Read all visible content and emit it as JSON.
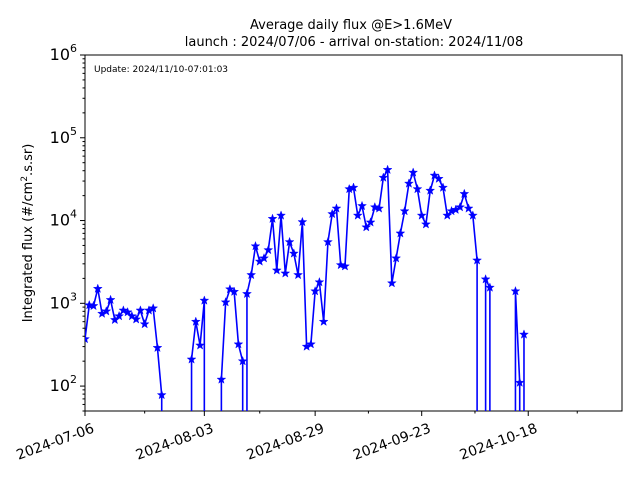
{
  "chart_data": {
    "type": "line",
    "title": "Average daily flux @E>1.6MeV",
    "subtitle": "launch : 2024/07/06 - arrival on-station: 2024/11/08",
    "annotation": "Update: 2024/11/10-07:01:03",
    "ylabel": "Integrated flux (#/cm",
    "ylabel_sup": "2",
    "ylabel_tail": ".s.sr)",
    "yscale": "log",
    "ylim": [
      50,
      1000000
    ],
    "xlim": [
      "2024-07-06",
      "2024-11-09"
    ],
    "x_ticks": [
      "2024-07-06",
      "2024-08-03",
      "2024-08-29",
      "2024-09-23",
      "2024-10-18"
    ],
    "y_ticks": [
      {
        "value": 100,
        "base": "10",
        "exp": "2"
      },
      {
        "value": 1000,
        "base": "10",
        "exp": "3"
      },
      {
        "value": 10000,
        "base": "10",
        "exp": "4"
      },
      {
        "value": 100000,
        "base": "10",
        "exp": "5"
      },
      {
        "value": 1000000,
        "base": "10",
        "exp": "6"
      }
    ],
    "grid": false,
    "marker": "star",
    "color": "#0000ff",
    "series": [
      {
        "segments": [
          [
            [
              "2024-07-06",
              370
            ],
            [
              "2024-07-07",
              950
            ],
            [
              "2024-07-08",
              930
            ],
            [
              "2024-07-09",
              1500
            ],
            [
              "2024-07-10",
              750
            ],
            [
              "2024-07-11",
              800
            ],
            [
              "2024-07-12",
              1100
            ],
            [
              "2024-07-13",
              630
            ],
            [
              "2024-07-14",
              700
            ],
            [
              "2024-07-15",
              820
            ],
            [
              "2024-07-16",
              780
            ],
            [
              "2024-07-17",
              700
            ],
            [
              "2024-07-18",
              640
            ],
            [
              "2024-07-19",
              820
            ],
            [
              "2024-07-20",
              560
            ],
            [
              "2024-07-21",
              820
            ],
            [
              "2024-07-22",
              870
            ],
            [
              "2024-07-23",
              290
            ],
            [
              "2024-07-24",
              78
            ],
            [
              "2024-07-24",
              30
            ]
          ],
          [
            [
              "2024-07-31",
              30
            ],
            [
              "2024-07-31",
              210
            ],
            [
              "2024-08-01",
              600
            ],
            [
              "2024-08-02",
              310
            ],
            [
              "2024-08-03",
              1080
            ],
            [
              "2024-08-03",
              30
            ]
          ],
          [
            [
              "2024-08-07",
              30
            ],
            [
              "2024-08-07",
              120
            ],
            [
              "2024-08-08",
              1030
            ],
            [
              "2024-08-09",
              1480
            ],
            [
              "2024-08-10",
              1380
            ],
            [
              "2024-08-11",
              320
            ],
            [
              "2024-08-12",
              200
            ],
            [
              "2024-08-12",
              30
            ]
          ],
          [
            [
              "2024-08-13",
              30
            ],
            [
              "2024-08-13",
              1300
            ],
            [
              "2024-08-14",
              2200
            ],
            [
              "2024-08-15",
              4900
            ],
            [
              "2024-08-16",
              3200
            ],
            [
              "2024-08-17",
              3500
            ],
            [
              "2024-08-18",
              4400
            ],
            [
              "2024-08-19",
              10500
            ],
            [
              "2024-08-20",
              2500
            ],
            [
              "2024-08-21",
              11500
            ],
            [
              "2024-08-22",
              2300
            ],
            [
              "2024-08-23",
              5500
            ],
            [
              "2024-08-24",
              4000
            ],
            [
              "2024-08-25",
              2200
            ],
            [
              "2024-08-26",
              9600
            ],
            [
              "2024-08-27",
              300
            ],
            [
              "2024-08-28",
              320
            ],
            [
              "2024-08-29",
              1400
            ],
            [
              "2024-08-30",
              1800
            ],
            [
              "2024-08-31",
              600
            ],
            [
              "2024-09-01",
              5500
            ],
            [
              "2024-09-02",
              12000
            ],
            [
              "2024-09-03",
              14000
            ],
            [
              "2024-09-04",
              2900
            ],
            [
              "2024-09-05",
              2800
            ],
            [
              "2024-09-06",
              24000
            ],
            [
              "2024-09-07",
              25000
            ],
            [
              "2024-09-08",
              11500
            ],
            [
              "2024-09-09",
              15000
            ],
            [
              "2024-09-10",
              8300
            ],
            [
              "2024-09-11",
              9500
            ],
            [
              "2024-09-12",
              14500
            ],
            [
              "2024-09-13",
              14000
            ],
            [
              "2024-09-14",
              33000
            ],
            [
              "2024-09-15",
              41000
            ],
            [
              "2024-09-16",
              1750
            ],
            [
              "2024-09-17",
              3500
            ],
            [
              "2024-09-18",
              7000
            ],
            [
              "2024-09-19",
              13000
            ],
            [
              "2024-09-20",
              28000
            ],
            [
              "2024-09-21",
              38000
            ],
            [
              "2024-09-22",
              24000
            ],
            [
              "2024-09-23",
              11500
            ],
            [
              "2024-09-24",
              9000
            ],
            [
              "2024-09-25",
              23000
            ],
            [
              "2024-09-26",
              35000
            ],
            [
              "2024-09-27",
              32000
            ],
            [
              "2024-09-28",
              25000
            ],
            [
              "2024-09-29",
              11500
            ],
            [
              "2024-09-30",
              13000
            ],
            [
              "2024-10-01",
              13500
            ],
            [
              "2024-10-02",
              14500
            ],
            [
              "2024-10-03",
              21000
            ],
            [
              "2024-10-04",
              14000
            ],
            [
              "2024-10-05",
              11500
            ],
            [
              "2024-10-06",
              3300
            ],
            [
              "2024-10-06",
              30
            ]
          ],
          [
            [
              "2024-10-08",
              30
            ],
            [
              "2024-10-08",
              1950
            ],
            [
              "2024-10-09",
              1550
            ],
            [
              "2024-10-09",
              30
            ]
          ],
          [
            [
              "2024-10-15",
              30
            ],
            [
              "2024-10-15",
              1400
            ],
            [
              "2024-10-16",
              110
            ],
            [
              "2024-10-16",
              30
            ]
          ],
          [
            [
              "2024-10-17",
              30
            ],
            [
              "2024-10-17",
              420
            ],
            [
              "2024-10-17",
              30
            ]
          ]
        ]
      }
    ]
  }
}
